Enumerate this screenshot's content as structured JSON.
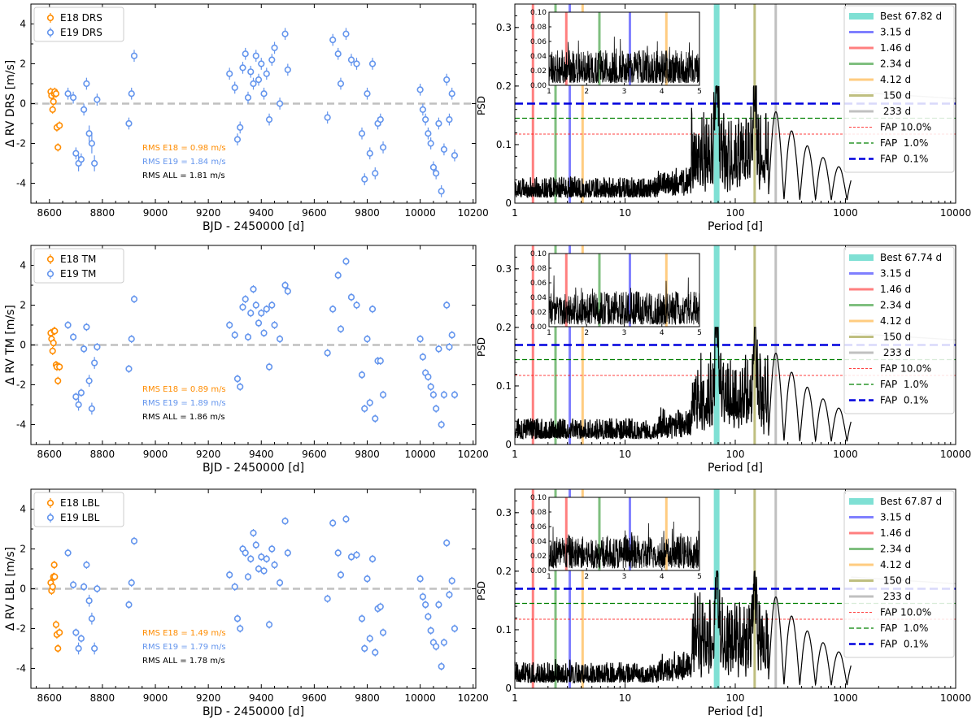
{
  "chart_data": {
    "type": "scatter+periodogram",
    "rows": [
      {
        "rv": {
          "ylabel": "Δ RV DRS [m/s]",
          "xlabel": "BJD - 2450000 [d]",
          "xlim": [
            8530,
            10210
          ],
          "ylim": [
            -5,
            5
          ],
          "xticks": [
            8600,
            8800,
            9000,
            9200,
            9400,
            9600,
            9800,
            10000,
            10200
          ],
          "yticks": [
            -4,
            -2,
            0,
            2,
            4
          ],
          "legend": [
            "E18 DRS",
            "E19 DRS"
          ],
          "rms": [
            "RMS E18 = 0.98 m/s",
            "RMS E19 = 1.84 m/s",
            "RMS ALL = 1.81 m/s"
          ],
          "e18": {
            "t": [
              8605,
              8608,
              8612,
              8615,
              8618,
              8620,
              8625,
              8628,
              8632,
              8638
            ],
            "rv": [
              0.6,
              0.4,
              -0.3,
              0.1,
              0.5,
              0.6,
              0.5,
              -1.2,
              -2.2,
              -1.1
            ]
          },
          "e19": {
            "t": [
              8670,
              8690,
              8700,
              8710,
              8720,
              8730,
              8740,
              8750,
              8760,
              8770,
              8780,
              8900,
              8910,
              8920,
              9280,
              9300,
              9310,
              9320,
              9330,
              9340,
              9350,
              9360,
              9370,
              9380,
              9390,
              9400,
              9410,
              9420,
              9430,
              9440,
              9450,
              9470,
              9490,
              9500,
              9650,
              9670,
              9690,
              9700,
              9720,
              9740,
              9760,
              9780,
              9790,
              9800,
              9810,
              9820,
              9830,
              9840,
              9850,
              9860,
              10000,
              10010,
              10020,
              10030,
              10040,
              10050,
              10060,
              10070,
              10080,
              10090,
              10100,
              10110,
              10120,
              10130
            ],
            "rv": [
              0.5,
              0.3,
              -2.5,
              -3.0,
              -2.8,
              -0.3,
              1.0,
              -1.5,
              -2.0,
              -3.0,
              0.2,
              -1.0,
              0.5,
              2.4,
              1.5,
              0.8,
              -1.8,
              -1.2,
              1.8,
              2.5,
              0.3,
              1.6,
              1.0,
              2.4,
              1.2,
              2.0,
              0.5,
              1.5,
              -0.8,
              2.2,
              2.8,
              0.0,
              3.5,
              1.7,
              -0.7,
              3.2,
              2.5,
              1.0,
              3.5,
              2.2,
              2.0,
              -1.5,
              -3.8,
              0.5,
              -2.5,
              2.0,
              -3.5,
              -1.0,
              -0.8,
              -2.2,
              0.7,
              -0.3,
              -0.8,
              -1.5,
              -2.0,
              -3.2,
              -3.5,
              -1.0,
              -4.4,
              -2.3,
              1.2,
              -0.8,
              0.5,
              -2.6
            ],
            "err": [
              0.3,
              0.3,
              0.3,
              0.4,
              0.3,
              0.3,
              0.3,
              0.4,
              0.5,
              0.4,
              0.3,
              0.3,
              0.3,
              0.3,
              0.3,
              0.3,
              0.3,
              0.3,
              0.3,
              0.3,
              0.3,
              0.3,
              0.3,
              0.3,
              0.3,
              0.3,
              0.3,
              0.3,
              0.3,
              0.3,
              0.3,
              0.3,
              0.3,
              0.3,
              0.3,
              0.3,
              0.3,
              0.3,
              0.3,
              0.3,
              0.3,
              0.3,
              0.3,
              0.3,
              0.3,
              0.3,
              0.3,
              0.3,
              0.3,
              0.3,
              0.3,
              0.3,
              0.3,
              0.3,
              0.3,
              0.3,
              0.3,
              0.3,
              0.3,
              0.3,
              0.3,
              0.3,
              0.3,
              0.3
            ]
          }
        },
        "psd": {
          "ylabel": "PSD",
          "xlabel": "Period [d]",
          "xlim": [
            1,
            10000
          ],
          "ylim": [
            0,
            0.34
          ],
          "xticks": [
            1,
            10,
            100,
            1000,
            10000
          ],
          "yticks": [
            0.0,
            0.1,
            0.2,
            0.3
          ],
          "peak_best": 0.184,
          "legend": [
            "Best 67.82 d",
            "3.15 d",
            "1.46 d",
            "2.34 d",
            "4.12 d",
            " 150 d",
            " 233 d",
            "FAP 10.0%",
            "FAP  1.0%",
            "FAP  0.1%"
          ],
          "fap": [
            0.118,
            0.145,
            0.17
          ],
          "inset": {
            "xlim": [
              1,
              5
            ],
            "ylim": [
              0,
              0.1
            ],
            "xticks": [
              1,
              2,
              3,
              4,
              5
            ],
            "yticks": [
              "0.00",
              "0.02",
              "0.04",
              "0.06",
              "0.08",
              "0.10"
            ]
          }
        }
      },
      {
        "rv": {
          "ylabel": "Δ RV TM [m/s]",
          "xlabel": "BJD - 2450000 [d]",
          "xlim": [
            8530,
            10210
          ],
          "ylim": [
            -5,
            5
          ],
          "xticks": [
            8600,
            8800,
            9000,
            9200,
            9400,
            9600,
            9800,
            10000,
            10200
          ],
          "yticks": [
            -4,
            -2,
            0,
            2,
            4
          ],
          "legend": [
            "E18 TM",
            "E19 TM"
          ],
          "rms": [
            "RMS E18 = 0.89 m/s",
            "RMS E19 = 1.89 m/s",
            "RMS ALL = 1.86 m/s"
          ],
          "e18": {
            "t": [
              8605,
              8608,
              8612,
              8615,
              8618,
              8620,
              8625,
              8628,
              8632,
              8638
            ],
            "rv": [
              0.6,
              0.3,
              -0.3,
              0.1,
              0.7,
              0.7,
              -1.0,
              -1.1,
              -1.8,
              -1.1
            ]
          },
          "e19": {
            "t": [
              8670,
              8690,
              8700,
              8710,
              8720,
              8730,
              8740,
              8750,
              8760,
              8770,
              8780,
              8900,
              8910,
              8920,
              9280,
              9300,
              9310,
              9320,
              9330,
              9340,
              9350,
              9360,
              9370,
              9380,
              9390,
              9400,
              9410,
              9420,
              9430,
              9440,
              9450,
              9470,
              9490,
              9500,
              9650,
              9670,
              9690,
              9700,
              9720,
              9740,
              9760,
              9780,
              9790,
              9800,
              9810,
              9820,
              9830,
              9840,
              9850,
              9860,
              10000,
              10010,
              10020,
              10030,
              10040,
              10050,
              10060,
              10070,
              10080,
              10090,
              10100,
              10110,
              10120,
              10130
            ],
            "rv": [
              1.0,
              0.4,
              -2.6,
              -3.0,
              -2.4,
              -0.2,
              0.9,
              -1.8,
              -3.2,
              -0.9,
              -0.1,
              -1.2,
              0.3,
              2.3,
              1.0,
              0.5,
              -1.7,
              -2.1,
              1.9,
              2.3,
              0.4,
              1.6,
              2.8,
              2.0,
              1.1,
              1.6,
              0.6,
              1.8,
              -1.1,
              2.0,
              1.0,
              0.3,
              3.0,
              2.7,
              -0.4,
              1.8,
              3.5,
              0.8,
              4.2,
              2.4,
              2.0,
              -1.5,
              -3.2,
              0.3,
              -2.9,
              1.8,
              -3.7,
              -0.8,
              -0.8,
              -2.5,
              0.3,
              -0.6,
              -1.4,
              -1.6,
              -2.1,
              -2.5,
              -3.2,
              -0.2,
              -4.0,
              -2.5,
              2.0,
              -0.1,
              0.5,
              -2.5
            ],
            "err": [
              0.2,
              0.2,
              0.2,
              0.3,
              0.2,
              0.2,
              0.2,
              0.3,
              0.3,
              0.3,
              0.2,
              0.2,
              0.2,
              0.2,
              0.2,
              0.2,
              0.2,
              0.2,
              0.2,
              0.2,
              0.2,
              0.2,
              0.2,
              0.2,
              0.2,
              0.2,
              0.2,
              0.2,
              0.2,
              0.2,
              0.2,
              0.2,
              0.2,
              0.2,
              0.2,
              0.2,
              0.2,
              0.2,
              0.2,
              0.2,
              0.2,
              0.2,
              0.2,
              0.2,
              0.2,
              0.2,
              0.2,
              0.2,
              0.2,
              0.2,
              0.2,
              0.2,
              0.2,
              0.2,
              0.2,
              0.2,
              0.2,
              0.2,
              0.2,
              0.2,
              0.2,
              0.2,
              0.2,
              0.2
            ]
          }
        },
        "psd": {
          "ylabel": "PSD",
          "xlabel": "Period [d]",
          "xlim": [
            1,
            10000
          ],
          "ylim": [
            0,
            0.34
          ],
          "xticks": [
            1,
            10,
            100,
            1000,
            10000
          ],
          "yticks": [
            0.0,
            0.1,
            0.2,
            0.3
          ],
          "peak_best": 0.178,
          "legend": [
            "Best 67.74 d",
            "3.15 d",
            "1.46 d",
            "2.34 d",
            "4.12 d",
            " 150 d",
            " 233 d",
            "FAP 10.0%",
            "FAP  1.0%",
            "FAP  0.1%"
          ],
          "fap": [
            0.118,
            0.145,
            0.17
          ],
          "inset": {
            "xlim": [
              1,
              5
            ],
            "ylim": [
              0,
              0.1
            ],
            "xticks": [
              1,
              2,
              3,
              4,
              5
            ],
            "yticks": [
              "0.00",
              "0.02",
              "0.04",
              "0.06",
              "0.08",
              "0.10"
            ]
          }
        }
      },
      {
        "rv": {
          "ylabel": "Δ RV LBL [m/s]",
          "xlabel": "BJD - 2450000 [d]",
          "xlim": [
            8530,
            10210
          ],
          "ylim": [
            -5,
            5
          ],
          "xticks": [
            8600,
            8800,
            9000,
            9200,
            9400,
            9600,
            9800,
            10000,
            10200
          ],
          "yticks": [
            -4,
            -2,
            0,
            2,
            4
          ],
          "legend": [
            "E18 LBL",
            "E19 LBL"
          ],
          "rms": [
            "RMS E18 = 1.49 m/s",
            "RMS E19 = 1.79 m/s",
            "RMS ALL = 1.78 m/s"
          ],
          "e18": {
            "t": [
              8605,
              8608,
              8612,
              8615,
              8618,
              8620,
              8625,
              8628,
              8632,
              8638
            ],
            "rv": [
              0.3,
              -0.1,
              0.1,
              0.6,
              1.2,
              0.6,
              -1.8,
              -2.3,
              -3.0,
              -2.2
            ]
          },
          "e19": {
            "t": [
              8670,
              8690,
              8700,
              8710,
              8720,
              8730,
              8740,
              8750,
              8760,
              8770,
              8780,
              8900,
              8910,
              8920,
              9280,
              9300,
              9310,
              9320,
              9330,
              9340,
              9350,
              9360,
              9370,
              9380,
              9390,
              9400,
              9410,
              9420,
              9430,
              9440,
              9450,
              9470,
              9490,
              9500,
              9650,
              9670,
              9690,
              9700,
              9720,
              9740,
              9760,
              9780,
              9790,
              9800,
              9810,
              9820,
              9830,
              9840,
              9850,
              9860,
              10000,
              10010,
              10020,
              10030,
              10040,
              10050,
              10060,
              10070,
              10080,
              10090,
              10100,
              10110,
              10120,
              10130
            ],
            "rv": [
              1.8,
              0.2,
              -2.2,
              -3.0,
              -2.5,
              0.1,
              1.2,
              -0.6,
              -1.5,
              -3.0,
              0.0,
              -0.8,
              0.3,
              2.4,
              0.7,
              0.1,
              -1.5,
              -2.0,
              2.0,
              1.8,
              0.6,
              1.5,
              2.8,
              2.2,
              1.0,
              1.6,
              0.9,
              1.5,
              -1.8,
              2.0,
              1.2,
              0.3,
              3.4,
              1.8,
              -0.5,
              3.3,
              1.8,
              0.7,
              3.5,
              1.6,
              1.7,
              -1.5,
              -3.0,
              0.5,
              -2.5,
              1.5,
              -3.2,
              -1.0,
              -0.9,
              -2.2,
              0.5,
              -0.4,
              -0.8,
              -1.4,
              -2.1,
              -2.7,
              -2.9,
              -0.8,
              -3.9,
              -2.7,
              2.3,
              -0.3,
              0.4,
              -2.0
            ],
            "err": [
              0.2,
              0.2,
              0.2,
              0.3,
              0.2,
              0.2,
              0.2,
              0.3,
              0.3,
              0.3,
              0.2,
              0.2,
              0.2,
              0.2,
              0.2,
              0.2,
              0.2,
              0.2,
              0.2,
              0.2,
              0.2,
              0.2,
              0.2,
              0.2,
              0.2,
              0.2,
              0.2,
              0.2,
              0.2,
              0.2,
              0.2,
              0.2,
              0.2,
              0.2,
              0.2,
              0.2,
              0.2,
              0.2,
              0.2,
              0.2,
              0.2,
              0.2,
              0.2,
              0.2,
              0.2,
              0.2,
              0.2,
              0.2,
              0.2,
              0.2,
              0.2,
              0.2,
              0.2,
              0.2,
              0.2,
              0.2,
              0.2,
              0.2,
              0.2,
              0.2,
              0.2,
              0.2,
              0.2,
              0.2
            ]
          }
        },
        "psd": {
          "ylabel": "PSD",
          "xlabel": "Period [d]",
          "xlim": [
            1,
            10000
          ],
          "ylim": [
            0,
            0.34
          ],
          "xticks": [
            1,
            10,
            100,
            1000,
            10000
          ],
          "yticks": [
            0.0,
            0.1,
            0.2,
            0.3
          ],
          "peak_best": 0.162,
          "legend": [
            "Best 67.87 d",
            "3.15 d",
            "1.46 d",
            "2.34 d",
            "4.12 d",
            " 150 d",
            " 233 d",
            "FAP 10.0%",
            "FAP  1.0%",
            "FAP  0.1%"
          ],
          "fap": [
            0.118,
            0.145,
            0.17
          ],
          "inset": {
            "xlim": [
              1,
              5
            ],
            "ylim": [
              0,
              0.1
            ],
            "xticks": [
              1,
              2,
              3,
              4,
              5
            ],
            "yticks": [
              "0.00",
              "0.02",
              "0.04",
              "0.06",
              "0.08",
              "0.10"
            ]
          }
        }
      }
    ],
    "periods_marked": [
      67.8,
      3.15,
      1.46,
      2.34,
      4.12,
      150,
      233
    ],
    "colors": {
      "e18": "#ff8c00",
      "e19": "#6495ed",
      "zero": "#c0c0c0",
      "best": "#7fe0d4",
      "p315": "#7f7fff",
      "p146": "#ff7f7f",
      "p234": "#7fbf7f",
      "p412": "#ffcc80",
      "p150": "#bfbf80",
      "p233": "#c0c0c0",
      "fap10": "#ff0000",
      "fap1": "#008000",
      "fap01": "#0000dd"
    }
  }
}
